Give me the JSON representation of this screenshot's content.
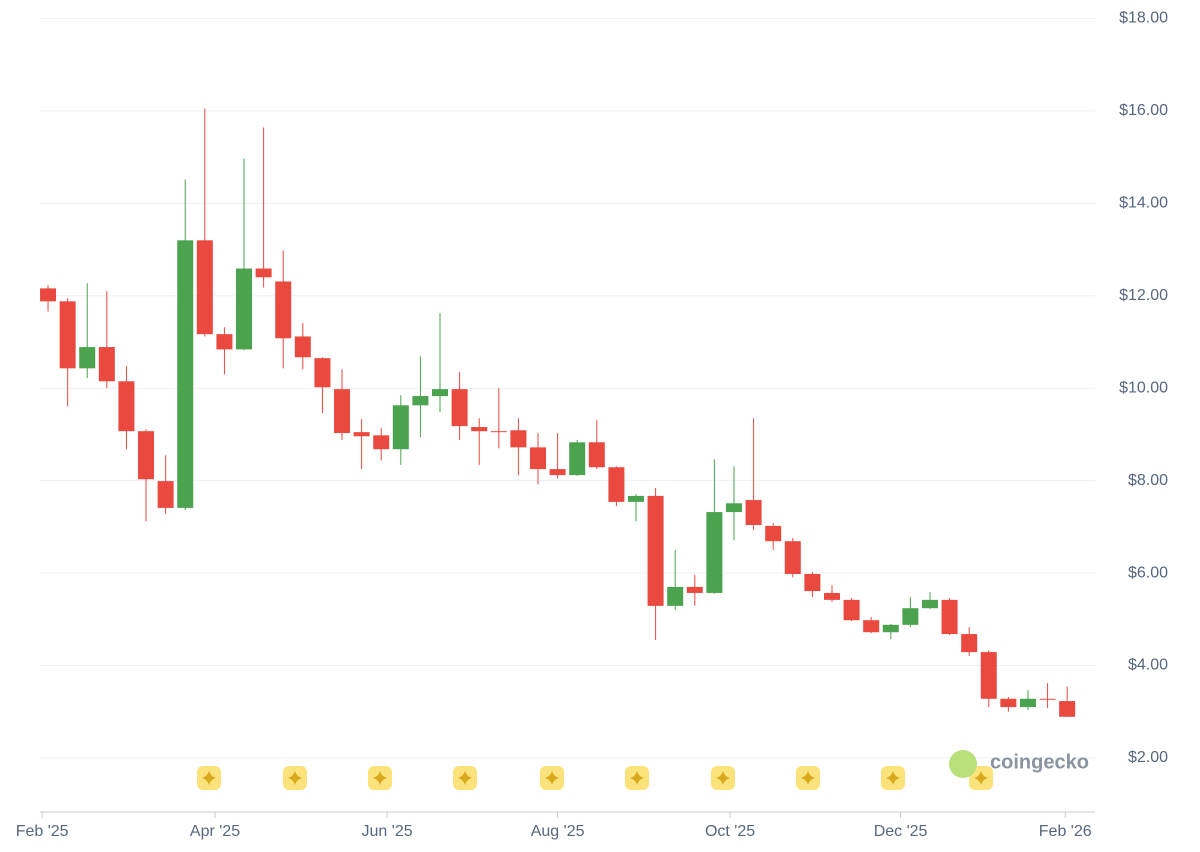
{
  "chart_data": {
    "type": "candlestick",
    "x": [
      0,
      1,
      2,
      3,
      4,
      5,
      6,
      7,
      8,
      9,
      10,
      11,
      12,
      13,
      14,
      15,
      16,
      17,
      18,
      19,
      20,
      21,
      22,
      23,
      24,
      25,
      26,
      27,
      28,
      29,
      30,
      31,
      32,
      33,
      34,
      35,
      36,
      37,
      38,
      39,
      40,
      41,
      42,
      43,
      44,
      45,
      46,
      47,
      48,
      49,
      50,
      51,
      52
    ],
    "open": [
      12.16,
      11.88,
      10.43,
      10.89,
      10.15,
      9.07,
      7.99,
      7.41,
      13.2,
      11.17,
      10.84,
      12.59,
      12.31,
      11.12,
      10.65,
      9.98,
      9.05,
      8.98,
      8.68,
      9.63,
      9.83,
      9.98,
      9.16,
      9.07,
      9.09,
      8.72,
      8.25,
      8.12,
      8.83,
      8.29,
      7.54,
      7.67,
      5.29,
      5.7,
      5.57,
      7.32,
      7.58,
      7.02,
      6.69,
      5.98,
      5.57,
      5.42,
      4.98,
      4.72,
      4.88,
      5.24,
      5.42,
      4.68,
      4.29,
      3.28,
      3.1,
      3.28,
      3.23
    ],
    "high": [
      12.23,
      11.95,
      12.27,
      12.1,
      10.48,
      9.11,
      8.55,
      14.52,
      16.05,
      11.32,
      14.97,
      15.64,
      12.98,
      11.41,
      10.67,
      10.41,
      9.33,
      9.14,
      9.85,
      10.69,
      11.62,
      10.35,
      9.35,
      10.0,
      9.35,
      9.03,
      9.03,
      8.88,
      9.31,
      8.31,
      7.71,
      7.84,
      6.5,
      5.96,
      8.46,
      8.31,
      9.35,
      7.08,
      6.76,
      6.02,
      5.74,
      5.46,
      5.05,
      4.9,
      5.48,
      5.59,
      5.46,
      4.83,
      4.33,
      3.32,
      3.47,
      3.62,
      3.54
    ],
    "low": [
      11.66,
      9.61,
      10.22,
      10.0,
      8.68,
      7.12,
      7.28,
      7.36,
      11.12,
      10.3,
      10.82,
      12.18,
      10.43,
      10.41,
      9.46,
      8.88,
      8.25,
      8.44,
      8.34,
      8.94,
      9.48,
      8.88,
      8.34,
      8.7,
      8.12,
      7.92,
      8.05,
      8.1,
      8.25,
      7.45,
      7.12,
      4.55,
      5.2,
      5.29,
      5.55,
      6.71,
      6.93,
      6.5,
      5.91,
      5.48,
      5.37,
      4.96,
      4.7,
      4.57,
      4.83,
      5.22,
      4.66,
      4.21,
      3.1,
      3.0,
      3.04,
      3.08,
      2.89
    ],
    "close": [
      11.88,
      10.43,
      10.89,
      10.15,
      9.07,
      8.03,
      7.41,
      13.2,
      11.17,
      10.84,
      12.59,
      12.4,
      11.08,
      10.67,
      10.02,
      9.03,
      8.96,
      8.68,
      9.63,
      9.83,
      9.98,
      9.18,
      9.07,
      9.05,
      8.72,
      8.25,
      8.12,
      8.83,
      8.29,
      7.54,
      7.67,
      5.29,
      5.7,
      5.57,
      7.32,
      7.51,
      7.04,
      6.69,
      5.98,
      5.61,
      5.42,
      4.98,
      4.72,
      4.88,
      5.24,
      5.42,
      4.68,
      4.29,
      3.28,
      3.1,
      3.28,
      3.26,
      2.89
    ],
    "up_color": "#4ba34f",
    "down_color": "#e9493f",
    "xlim": [
      -0.41,
      53.42
    ],
    "xticks": [
      {
        "value": -0.3,
        "label": "Feb '25"
      },
      {
        "value": 8.52,
        "label": "Apr '25"
      },
      {
        "value": 17.3,
        "label": "Jun '25"
      },
      {
        "value": 26.0,
        "label": "Aug '25"
      },
      {
        "value": 34.8,
        "label": "Oct '25"
      },
      {
        "value": 43.5,
        "label": "Dec '25"
      },
      {
        "value": 51.9,
        "label": "Feb '26"
      }
    ],
    "ylim": [
      0.83,
      18.4
    ],
    "yticks": [
      {
        "value": 2,
        "label": "$2.00"
      },
      {
        "value": 4,
        "label": "$4.00"
      },
      {
        "value": 6,
        "label": "$6.00"
      },
      {
        "value": 8,
        "label": "$8.00"
      },
      {
        "value": 10,
        "label": "$10.00"
      },
      {
        "value": 12,
        "label": "$12.00"
      },
      {
        "value": 14,
        "label": "$14.00"
      },
      {
        "value": 16,
        "label": "$16.00"
      },
      {
        "value": 18,
        "label": "$18.00"
      }
    ],
    "grid": true,
    "watermark": "coingecko"
  }
}
